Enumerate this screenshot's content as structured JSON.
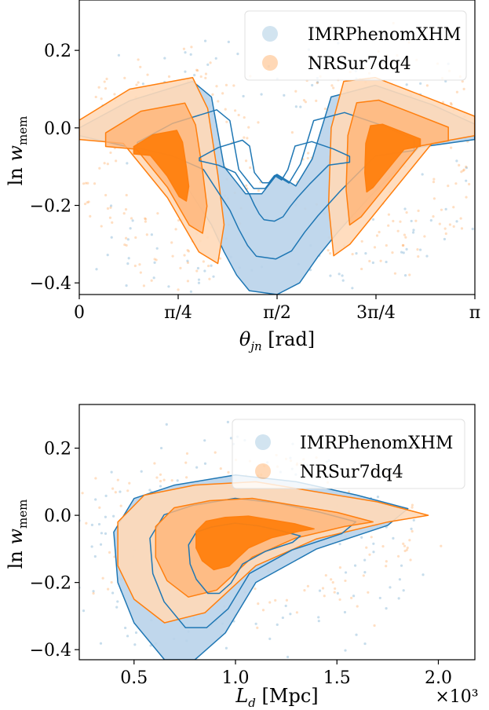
{
  "colors": {
    "blue": "#1f77b4",
    "blue_fill": "#b9d3ea",
    "blue_mid": "#6ea3cf",
    "orange": "#ff7f0e",
    "orange_light": "#ffd9b8",
    "orange_mid": "#ffb477",
    "orange_dark": "#ff7f0e"
  },
  "chart_data": [
    {
      "type": "scatter",
      "title": "",
      "xlabel": "θ_jn [rad]",
      "ylabel": "ln w_mem",
      "xlim": [
        0,
        3.14159
      ],
      "ylim": [
        -0.43,
        0.33
      ],
      "xticks": [
        {
          "value": 0,
          "label": "0"
        },
        {
          "value": 0.785398,
          "label": "π/4"
        },
        {
          "value": 1.570796,
          "label": "π/2"
        },
        {
          "value": 2.356194,
          "label": "3π/4"
        },
        {
          "value": 3.14159,
          "label": "π"
        }
      ],
      "yticks": [
        {
          "value": 0.2,
          "label": "0.2"
        },
        {
          "value": 0.0,
          "label": "0.0"
        },
        {
          "value": -0.2,
          "label": "−0.2"
        },
        {
          "value": -0.4,
          "label": "−0.4"
        }
      ],
      "legend": {
        "placement": "top-right",
        "entries": [
          "IMRPhenomXHM",
          "NRSur7dq4"
        ]
      },
      "series": [
        {
          "name": "IMRPhenomXHM",
          "color": "blue",
          "outer_contour": [
            [
              0.0,
              0.0
            ],
            [
              0.4,
              0.07
            ],
            [
              0.9,
              0.12
            ],
            [
              1.05,
              0.08
            ],
            [
              1.15,
              -0.1
            ],
            [
              1.32,
              -0.17
            ],
            [
              1.45,
              -0.17
            ],
            [
              1.57,
              -0.12
            ],
            [
              1.72,
              -0.15
            ],
            [
              1.85,
              -0.08
            ],
            [
              2.0,
              0.08
            ],
            [
              2.35,
              0.11
            ],
            [
              2.8,
              0.06
            ],
            [
              3.14,
              0.01
            ],
            [
              3.14,
              -0.03
            ],
            [
              2.7,
              -0.05
            ],
            [
              2.3,
              -0.18
            ],
            [
              2.05,
              -0.27
            ],
            [
              1.9,
              -0.33
            ],
            [
              1.75,
              -0.4
            ],
            [
              1.57,
              -0.43
            ],
            [
              1.35,
              -0.42
            ],
            [
              1.25,
              -0.38
            ],
            [
              1.15,
              -0.32
            ],
            [
              1.05,
              -0.25
            ],
            [
              0.75,
              -0.1
            ],
            [
              0.4,
              -0.05
            ],
            [
              0.0,
              -0.02
            ]
          ]
        },
        {
          "name": "NRSur7dq4",
          "color": "orange",
          "outer_contour": [
            [
              0.0,
              0.02
            ],
            [
              0.4,
              0.1
            ],
            [
              0.9,
              0.13
            ],
            [
              1.02,
              0.05
            ],
            [
              1.1,
              -0.12
            ],
            [
              1.15,
              -0.25
            ],
            [
              1.1,
              -0.35
            ],
            [
              0.95,
              -0.32
            ],
            [
              0.7,
              -0.18
            ],
            [
              0.35,
              -0.04
            ],
            [
              0.0,
              -0.03
            ]
          ]
        },
        {
          "name": "NRSur7dq4",
          "color": "orange",
          "outer_contour": [
            [
              3.14,
              0.03
            ],
            [
              2.75,
              0.08
            ],
            [
              2.35,
              0.13
            ],
            [
              2.1,
              0.12
            ],
            [
              2.0,
              0.0
            ],
            [
              1.98,
              -0.2
            ],
            [
              2.02,
              -0.33
            ],
            [
              2.15,
              -0.3
            ],
            [
              2.45,
              -0.18
            ],
            [
              2.8,
              -0.04
            ],
            [
              3.14,
              -0.02
            ]
          ]
        }
      ]
    },
    {
      "type": "scatter",
      "title": "",
      "xlabel": "L_d [Mpc]",
      "ylabel": "ln w_mem",
      "x_multiplier": "×10³",
      "xlim": [
        0.23,
        2.18
      ],
      "ylim": [
        -0.43,
        0.33
      ],
      "xticks": [
        {
          "value": 0.5,
          "label": "0.5"
        },
        {
          "value": 1.0,
          "label": "1.0"
        },
        {
          "value": 1.5,
          "label": "1.5"
        },
        {
          "value": 2.0,
          "label": "2.0"
        }
      ],
      "yticks": [
        {
          "value": 0.2,
          "label": "0.2"
        },
        {
          "value": 0.0,
          "label": "0.0"
        },
        {
          "value": -0.2,
          "label": "−0.2"
        },
        {
          "value": -0.4,
          "label": "−0.4"
        }
      ],
      "legend": {
        "placement": "top-right",
        "entries": [
          "IMRPhenomXHM",
          "NRSur7dq4"
        ]
      },
      "series": [
        {
          "name": "IMRPhenomXHM",
          "color": "blue",
          "outer_contour": [
            [
              0.4,
              -0.05
            ],
            [
              0.5,
              0.05
            ],
            [
              0.7,
              0.09
            ],
            [
              1.0,
              0.12
            ],
            [
              1.3,
              0.1
            ],
            [
              1.6,
              0.06
            ],
            [
              1.85,
              0.02
            ],
            [
              1.75,
              -0.03
            ],
            [
              1.4,
              -0.1
            ],
            [
              1.1,
              -0.2
            ],
            [
              0.95,
              -0.35
            ],
            [
              0.8,
              -0.43
            ],
            [
              0.65,
              -0.43
            ],
            [
              0.5,
              -0.32
            ],
            [
              0.42,
              -0.2
            ]
          ]
        },
        {
          "name": "NRSur7dq4",
          "color": "orange",
          "outer_contour": [
            [
              0.42,
              -0.02
            ],
            [
              0.55,
              0.06
            ],
            [
              0.8,
              0.09
            ],
            [
              1.1,
              0.1
            ],
            [
              1.4,
              0.07
            ],
            [
              1.7,
              0.04
            ],
            [
              1.95,
              0.0
            ],
            [
              1.75,
              -0.02
            ],
            [
              1.4,
              -0.07
            ],
            [
              1.1,
              -0.15
            ],
            [
              0.85,
              -0.29
            ],
            [
              0.65,
              -0.32
            ],
            [
              0.5,
              -0.25
            ],
            [
              0.42,
              -0.15
            ]
          ]
        }
      ]
    }
  ]
}
